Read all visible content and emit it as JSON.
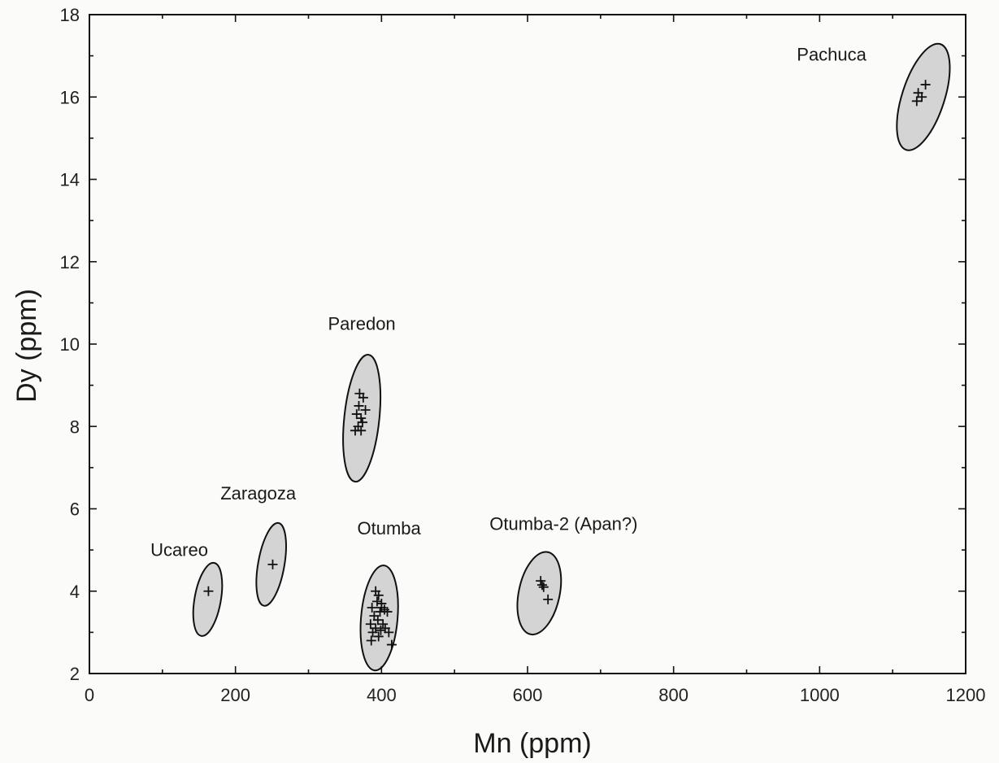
{
  "chart_data": {
    "type": "scatter",
    "title": "",
    "xlabel": "Mn (ppm)",
    "ylabel": "Dy (ppm)",
    "xlim": [
      0,
      1200
    ],
    "ylim": [
      2,
      18
    ],
    "xticks": [
      0,
      200,
      400,
      600,
      800,
      1000,
      1200
    ],
    "yticks": [
      2,
      4,
      6,
      8,
      10,
      12,
      14,
      16,
      18
    ],
    "grid": false,
    "legend": "none",
    "marker": "plus",
    "ellipse_fill": "#d4d4d4",
    "groups": [
      {
        "name": "Pachuca",
        "ellipse": {
          "cx": 1142,
          "cy": 16.0,
          "rx": 29,
          "ry": 1.35,
          "angle": 18
        },
        "points": [
          [
            1135,
            16.1
          ],
          [
            1145,
            16.3
          ],
          [
            1133,
            15.9
          ],
          [
            1140,
            16.0
          ]
        ]
      },
      {
        "name": "Paredon",
        "ellipse": {
          "cx": 373,
          "cy": 8.2,
          "rx": 24,
          "ry": 1.55,
          "angle": 6
        },
        "points": [
          [
            370,
            8.8
          ],
          [
            375,
            8.7
          ],
          [
            366,
            8.3
          ],
          [
            372,
            8.2
          ],
          [
            378,
            8.4
          ],
          [
            368,
            8.0
          ],
          [
            364,
            7.9
          ],
          [
            372,
            7.9
          ],
          [
            369,
            8.5
          ],
          [
            374,
            8.1
          ]
        ]
      },
      {
        "name": "Zaragoza",
        "ellipse": {
          "cx": 249,
          "cy": 4.65,
          "rx": 18,
          "ry": 1.02,
          "angle": 10
        },
        "points": [
          [
            251,
            4.65
          ]
        ]
      },
      {
        "name": "Ucareo",
        "ellipse": {
          "cx": 162,
          "cy": 3.8,
          "rx": 18,
          "ry": 0.9,
          "angle": 10
        },
        "points": [
          [
            163,
            4.0
          ]
        ]
      },
      {
        "name": "Otumba",
        "ellipse": {
          "cx": 397,
          "cy": 3.35,
          "rx": 25,
          "ry": 1.28,
          "angle": 5
        },
        "points": [
          [
            392,
            4.0
          ],
          [
            396,
            3.9
          ],
          [
            400,
            3.7
          ],
          [
            387,
            3.6
          ],
          [
            398,
            3.5
          ],
          [
            404,
            3.55
          ],
          [
            390,
            3.4
          ],
          [
            395,
            3.3
          ],
          [
            402,
            3.2
          ],
          [
            408,
            3.5
          ],
          [
            385,
            3.2
          ],
          [
            392,
            3.1
          ],
          [
            399,
            3.05
          ],
          [
            405,
            3.1
          ],
          [
            388,
            3.0
          ],
          [
            396,
            2.9
          ],
          [
            410,
            3.0
          ],
          [
            386,
            2.8
          ],
          [
            414,
            2.7
          ],
          [
            400,
            3.6
          ],
          [
            394,
            3.75
          ]
        ]
      },
      {
        "name": "Otumba-2 (Apan?)",
        "ellipse": {
          "cx": 616,
          "cy": 3.95,
          "rx": 28,
          "ry": 1.02,
          "angle": 12
        },
        "points": [
          [
            618,
            4.25
          ],
          [
            622,
            4.1
          ],
          [
            628,
            3.8
          ],
          [
            620,
            4.15
          ]
        ]
      }
    ]
  }
}
